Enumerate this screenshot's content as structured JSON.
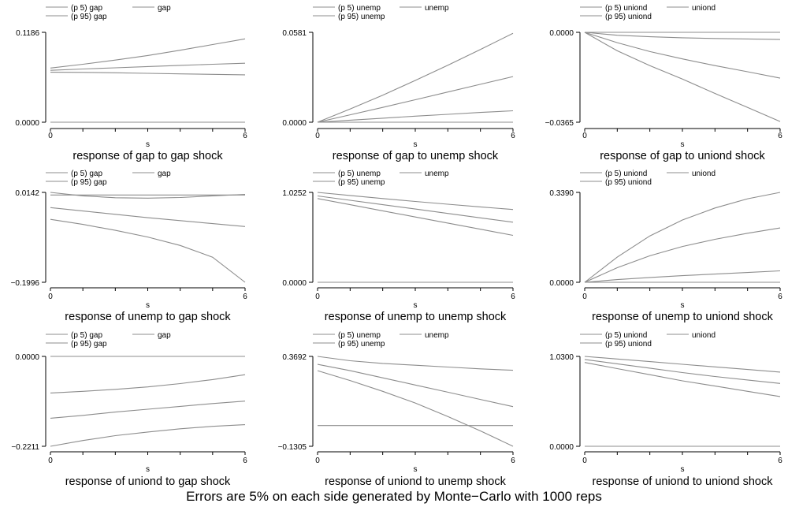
{
  "caption": "Errors are 5% on each side generated by Monte−Carlo with 1000 reps",
  "chart_data": [
    {
      "type": "line",
      "title": "response of gap to gap shock",
      "xlabel": "s",
      "x": [
        0,
        1,
        2,
        3,
        4,
        5,
        6
      ],
      "xticks": [
        "0",
        "6"
      ],
      "ylim": [
        0,
        0.1186
      ],
      "yticks": [
        "0.0000",
        "0.1186"
      ],
      "series": [
        {
          "name": "(p 5) gap",
          "values": [
            0.066,
            0.0657,
            0.0652,
            0.0645,
            0.0638,
            0.0631,
            0.0625
          ]
        },
        {
          "name": "gap",
          "values": [
            0.0685,
            0.0702,
            0.0718,
            0.0735,
            0.075,
            0.0765,
            0.0778
          ]
        },
        {
          "name": "(p 95) gap",
          "values": [
            0.0715,
            0.0765,
            0.082,
            0.088,
            0.095,
            0.1025,
            0.11
          ]
        },
        {
          "name": "",
          "values": [
            0,
            0,
            0,
            0,
            0,
            0,
            0
          ]
        }
      ]
    },
    {
      "type": "line",
      "title": "response of gap to unemp shock",
      "xlabel": "s",
      "x": [
        0,
        1,
        2,
        3,
        4,
        5,
        6
      ],
      "xticks": [
        "0",
        "6"
      ],
      "ylim": [
        0,
        0.0581
      ],
      "yticks": [
        "0.0000",
        "0.0581"
      ],
      "series": [
        {
          "name": "(p 5) unemp",
          "values": [
            0,
            0.0013,
            0.0026,
            0.0039,
            0.0051,
            0.0063,
            0.0074
          ]
        },
        {
          "name": "unemp",
          "values": [
            0,
            0.0048,
            0.0096,
            0.0145,
            0.0195,
            0.0245,
            0.0295
          ]
        },
        {
          "name": "(p 95) unemp",
          "values": [
            0,
            0.0085,
            0.0175,
            0.027,
            0.0368,
            0.047,
            0.0575
          ]
        },
        {
          "name": "",
          "values": [
            0,
            0,
            0,
            0,
            0,
            0,
            0
          ]
        }
      ]
    },
    {
      "type": "line",
      "title": "response of gap to uniond shock",
      "xlabel": "s",
      "x": [
        0,
        1,
        2,
        3,
        4,
        5,
        6
      ],
      "xticks": [
        "0",
        "6"
      ],
      "ylim": [
        -0.0365,
        0
      ],
      "yticks": [
        "−0.0365",
        "0.0000"
      ],
      "series": [
        {
          "name": "(p 5) uniond",
          "values": [
            0,
            -0.0075,
            -0.0135,
            -0.019,
            -0.0248,
            -0.0305,
            -0.0362
          ]
        },
        {
          "name": "uniond",
          "values": [
            0,
            -0.0042,
            -0.0078,
            -0.0108,
            -0.0135,
            -0.016,
            -0.0186
          ]
        },
        {
          "name": "(p 95) uniond",
          "values": [
            0,
            -0.0012,
            -0.0018,
            -0.0022,
            -0.0025,
            -0.0027,
            -0.0029
          ]
        },
        {
          "name": "",
          "values": [
            0,
            0,
            0,
            0,
            0,
            0,
            0
          ]
        }
      ]
    },
    {
      "type": "line",
      "title": "response of unemp to gap shock",
      "xlabel": "s",
      "x": [
        0,
        1,
        2,
        3,
        4,
        5,
        6
      ],
      "xticks": [
        "0",
        "6"
      ],
      "ylim": [
        -0.1996,
        0.0142
      ],
      "yticks": [
        "−0.1996",
        "0.0142"
      ],
      "series": [
        {
          "name": "(p 5) gap",
          "values": [
            -0.05,
            -0.062,
            -0.076,
            -0.092,
            -0.112,
            -0.14,
            -0.1996
          ]
        },
        {
          "name": "gap",
          "values": [
            -0.022,
            -0.03,
            -0.038,
            -0.046,
            -0.053,
            -0.06,
            -0.067
          ]
        },
        {
          "name": "(p 95) gap",
          "values": [
            0.0142,
            0.006,
            0.0015,
            0.0005,
            0.002,
            0.006,
            0.0095
          ]
        },
        {
          "name": "",
          "values": [
            0.008,
            0.008,
            0.008,
            0.008,
            0.008,
            0.008,
            0.008
          ]
        }
      ]
    },
    {
      "type": "line",
      "title": "response of unemp to unemp shock",
      "xlabel": "s",
      "x": [
        0,
        1,
        2,
        3,
        4,
        5,
        6
      ],
      "xticks": [
        "0",
        "6"
      ],
      "ylim": [
        0,
        1.0252
      ],
      "yticks": [
        "0.0000",
        "1.0252"
      ],
      "series": [
        {
          "name": "(p 5) unemp",
          "values": [
            0.955,
            0.885,
            0.815,
            0.745,
            0.675,
            0.605,
            0.535
          ]
        },
        {
          "name": "unemp",
          "values": [
            0.985,
            0.935,
            0.885,
            0.835,
            0.785,
            0.735,
            0.685
          ]
        },
        {
          "name": "(p 95) unemp",
          "values": [
            1.0252,
            0.99,
            0.955,
            0.922,
            0.89,
            0.86,
            0.83
          ]
        },
        {
          "name": "",
          "values": [
            0,
            0,
            0,
            0,
            0,
            0,
            0
          ]
        }
      ]
    },
    {
      "type": "line",
      "title": "response of unemp to uniond shock",
      "xlabel": "s",
      "x": [
        0,
        1,
        2,
        3,
        4,
        5,
        6
      ],
      "xticks": [
        "0",
        "6"
      ],
      "ylim": [
        0,
        0.339
      ],
      "yticks": [
        "0.0000",
        "0.3390"
      ],
      "series": [
        {
          "name": "(p 5) uniond",
          "values": [
            0,
            0.01,
            0.018,
            0.025,
            0.031,
            0.037,
            0.043
          ]
        },
        {
          "name": "uniond",
          "values": [
            0,
            0.055,
            0.1,
            0.135,
            0.162,
            0.185,
            0.205
          ]
        },
        {
          "name": "(p 95) uniond",
          "values": [
            0,
            0.095,
            0.175,
            0.235,
            0.28,
            0.315,
            0.339
          ]
        },
        {
          "name": "",
          "values": [
            0,
            0,
            0,
            0,
            0,
            0,
            0
          ]
        }
      ]
    },
    {
      "type": "line",
      "title": "response of uniond to gap shock",
      "xlabel": "s",
      "x": [
        0,
        1,
        2,
        3,
        4,
        5,
        6
      ],
      "xticks": [
        "0",
        "6"
      ],
      "ylim": [
        -0.2211,
        0
      ],
      "yticks": [
        "−0.2211",
        "0.0000"
      ],
      "series": [
        {
          "name": "(p 5) gap",
          "values": [
            -0.2211,
            -0.207,
            -0.195,
            -0.186,
            -0.178,
            -0.172,
            -0.168
          ]
        },
        {
          "name": "gap",
          "values": [
            -0.152,
            -0.145,
            -0.137,
            -0.13,
            -0.123,
            -0.116,
            -0.11
          ]
        },
        {
          "name": "(p 95) gap",
          "values": [
            -0.09,
            -0.086,
            -0.081,
            -0.075,
            -0.067,
            -0.057,
            -0.045
          ]
        },
        {
          "name": "",
          "values": [
            0,
            0,
            0,
            0,
            0,
            0,
            0
          ]
        }
      ]
    },
    {
      "type": "line",
      "title": "response of uniond to unemp shock",
      "xlabel": "s",
      "x": [
        0,
        1,
        2,
        3,
        4,
        5,
        6
      ],
      "xticks": [
        "0",
        "6"
      ],
      "ylim": [
        -0.1305,
        0.3692
      ],
      "yticks": [
        "−0.1305",
        "0.3692"
      ],
      "series": [
        {
          "name": "(p 5) unemp",
          "values": [
            0.29,
            0.235,
            0.175,
            0.11,
            0.035,
            -0.045,
            -0.1305
          ]
        },
        {
          "name": "unemp",
          "values": [
            0.325,
            0.29,
            0.25,
            0.21,
            0.17,
            0.13,
            0.09
          ]
        },
        {
          "name": "(p 95) unemp",
          "values": [
            0.3692,
            0.345,
            0.33,
            0.32,
            0.31,
            0.3,
            0.292
          ]
        },
        {
          "name": "",
          "values": [
            -0.015,
            -0.015,
            -0.015,
            -0.015,
            -0.015,
            -0.015,
            -0.015
          ]
        }
      ]
    },
    {
      "type": "line",
      "title": "response of uniond to uniond shock",
      "xlabel": "s",
      "x": [
        0,
        1,
        2,
        3,
        4,
        5,
        6
      ],
      "xticks": [
        "0",
        "6"
      ],
      "ylim": [
        0,
        1.03
      ],
      "yticks": [
        "0.0000",
        "1.0300"
      ],
      "series": [
        {
          "name": "(p 5) uniond",
          "values": [
            0.96,
            0.89,
            0.82,
            0.75,
            0.69,
            0.63,
            0.57
          ]
        },
        {
          "name": "uniond",
          "values": [
            0.995,
            0.945,
            0.895,
            0.845,
            0.8,
            0.76,
            0.72
          ]
        },
        {
          "name": "(p 95) uniond",
          "values": [
            1.03,
            1.0,
            0.97,
            0.94,
            0.91,
            0.88,
            0.85
          ]
        },
        {
          "name": "",
          "values": [
            0,
            0,
            0,
            0,
            0,
            0,
            0
          ]
        }
      ]
    }
  ]
}
